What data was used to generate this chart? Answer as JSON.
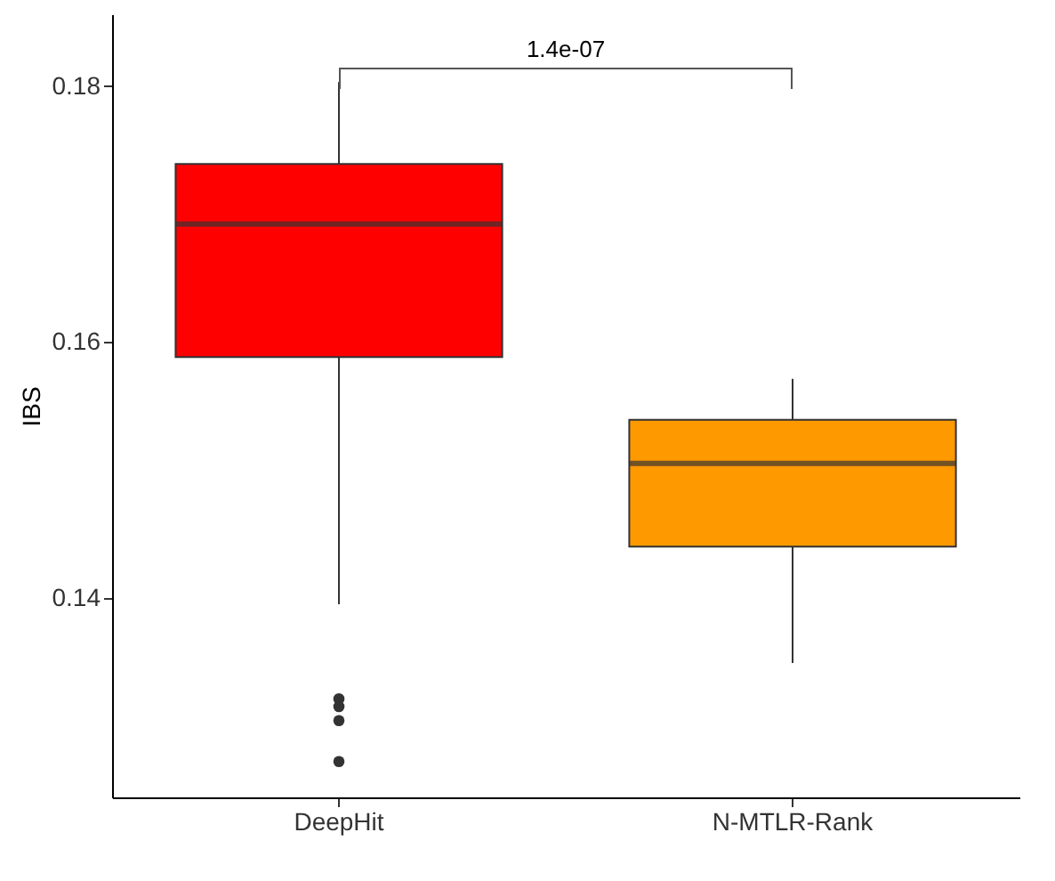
{
  "chart_data": {
    "type": "box",
    "ylabel": "IBS",
    "categories": [
      "DeepHit",
      "N-MTLR-Rank"
    ],
    "colors": [
      "#ff0000",
      "#ff9900"
    ],
    "boxes": [
      {
        "low": 0.1395,
        "q1": 0.1588,
        "median": 0.1692,
        "q3": 0.1739,
        "high": 0.1803,
        "outliers": [
          0.1321,
          0.1315,
          0.1304,
          0.1272
        ]
      },
      {
        "low": 0.1349,
        "q1": 0.144,
        "median": 0.1505,
        "q3": 0.1539,
        "high": 0.1571
      }
    ],
    "ylim": [
      0.1244,
      0.1856
    ],
    "yticks": [
      0.14,
      0.16,
      0.18
    ],
    "annotations": [
      "1.4e-07"
    ],
    "grid": false,
    "legend": false
  }
}
